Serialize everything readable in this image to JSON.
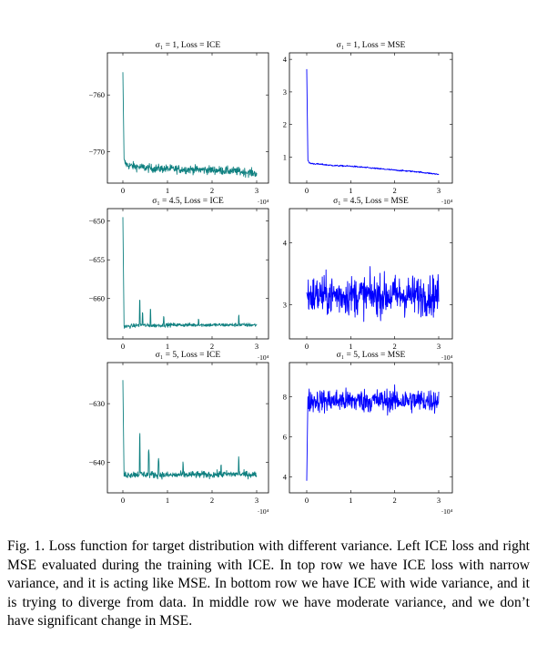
{
  "figure": {
    "panels": [
      {
        "title": "σ₁ = 1, Loss = ICE",
        "color": "#0f8080",
        "x_exponent": "·10⁴",
        "x_ticks": [
          0,
          1,
          2,
          3
        ],
        "y_ticks": [
          -770,
          -760
        ],
        "ylim": [
          -775.5,
          -752.6
        ]
      },
      {
        "title": "σ₁ = 1, Loss = MSE",
        "color": "#0000ff",
        "x_exponent": "·10⁴",
        "x_ticks": [
          0,
          1,
          2,
          3
        ],
        "y_ticks": [
          1,
          2,
          3,
          4
        ],
        "ylim": [
          0.2,
          4.2
        ]
      },
      {
        "title": "σ₁ = 4.5, Loss = ICE",
        "color": "#0f8080",
        "x_exponent": "·10⁴",
        "x_ticks": [
          0,
          1,
          2,
          3
        ],
        "y_ticks": [
          -660,
          -655,
          -650
        ],
        "ylim": [
          -665.2,
          -648.4
        ]
      },
      {
        "title": "σ₁ = 4.5, Loss = MSE",
        "color": "#0000ff",
        "x_exponent": "·10⁴",
        "x_ticks": [
          0,
          1,
          2,
          3
        ],
        "y_ticks": [
          3,
          4
        ],
        "ylim": [
          2.45,
          4.55
        ]
      },
      {
        "title": "σ₁ = 5, Loss = ICE",
        "color": "#0f8080",
        "x_exponent": "·10⁴",
        "x_ticks": [
          0,
          1,
          2,
          3
        ],
        "y_ticks": [
          -640,
          -630
        ],
        "ylim": [
          -645.2,
          -623.0
        ]
      },
      {
        "title": "σ₁ = 5, Loss = MSE",
        "color": "#0000ff",
        "x_exponent": "·10⁴",
        "x_ticks": [
          0,
          1,
          2,
          3
        ],
        "y_ticks": [
          4,
          6,
          8
        ],
        "ylim": [
          3.2,
          9.7
        ]
      }
    ]
  },
  "chart_data": [
    {
      "type": "line",
      "title": "σ₁ = 1, Loss = ICE",
      "xlim": [
        -0.3,
        3.2
      ],
      "ylim": [
        -775.5,
        -752.6
      ],
      "series": [
        {
          "x": [
            0,
            0.02,
            0.06,
            0.12,
            0.3,
            0.6,
            1.0,
            1.5,
            2.0,
            2.5,
            2.8,
            3.0
          ],
          "values": [
            -756,
            -771.5,
            -772.1,
            -772.4,
            -772.6,
            -772.9,
            -773.0,
            -773.1,
            -773.2,
            -773.4,
            -773.6,
            -773.8
          ]
        }
      ]
    },
    {
      "type": "line",
      "title": "σ₁ = 1, Loss = MSE",
      "xlim": [
        -0.3,
        3.2
      ],
      "ylim": [
        0.2,
        4.2
      ],
      "series": [
        {
          "x": [
            0,
            0.02,
            0.06,
            0.12,
            0.3,
            0.6,
            1.0,
            1.5,
            2.0,
            2.5,
            2.8,
            3.0
          ],
          "values": [
            3.7,
            0.9,
            0.82,
            0.8,
            0.78,
            0.74,
            0.72,
            0.66,
            0.6,
            0.55,
            0.5,
            0.47
          ]
        }
      ]
    },
    {
      "type": "line",
      "title": "σ₁ = 4.5, Loss = ICE",
      "xlim": [
        -0.3,
        3.2
      ],
      "ylim": [
        -665.2,
        -648.4
      ],
      "series": [
        {
          "x": [
            0,
            0.02,
            0.1,
            0.4,
            0.6,
            1.0,
            1.5,
            2.0,
            2.5,
            3.0
          ],
          "values": [
            -649.5,
            -663.6,
            -663.6,
            -663.4,
            -663.5,
            -663.4,
            -663.4,
            -663.4,
            -663.4,
            -663.4
          ]
        }
      ]
    },
    {
      "type": "line",
      "title": "σ₁ = 4.5, Loss = MSE",
      "xlim": [
        -0.3,
        3.2
      ],
      "ylim": [
        2.45,
        4.55
      ],
      "series": [
        {
          "x": [
            0,
            0.5,
            1.0,
            1.5,
            2.0,
            2.5,
            3.0
          ],
          "values": [
            3.2,
            3.2,
            3.2,
            3.2,
            3.2,
            3.2,
            3.2
          ]
        }
      ]
    },
    {
      "type": "line",
      "title": "σ₁ = 5, Loss = ICE",
      "xlim": [
        -0.3,
        3.2
      ],
      "ylim": [
        -645.2,
        -623.0
      ],
      "series": [
        {
          "x": [
            0,
            0.02,
            0.1,
            0.4,
            1.0,
            1.5,
            2.0,
            2.5,
            3.0
          ],
          "values": [
            -626,
            -642.1,
            -642.1,
            -642.0,
            -642.2,
            -642.1,
            -642.1,
            -642.0,
            -642.1
          ]
        }
      ]
    },
    {
      "type": "line",
      "title": "σ₁ = 5, Loss = MSE",
      "xlim": [
        -0.3,
        3.2
      ],
      "ylim": [
        3.2,
        9.7
      ],
      "series": [
        {
          "x": [
            0,
            0.02,
            0.1,
            0.5,
            1.0,
            1.5,
            2.0,
            2.5,
            3.0
          ],
          "values": [
            3.8,
            7.0,
            7.5,
            7.8,
            7.8,
            7.8,
            7.8,
            7.8,
            7.8
          ]
        }
      ]
    }
  ],
  "caption": {
    "text": "Fig. 1.  Loss function for target distribution with different variance. Left ICE loss and right MSE evaluated during the training with ICE. In top row we have ICE loss with narrow variance, and it is acting like MSE. In bottom row we have ICE with wide variance, and it is trying to diverge from data. In middle row we have moderate variance, and we don’t have significant change in MSE."
  }
}
